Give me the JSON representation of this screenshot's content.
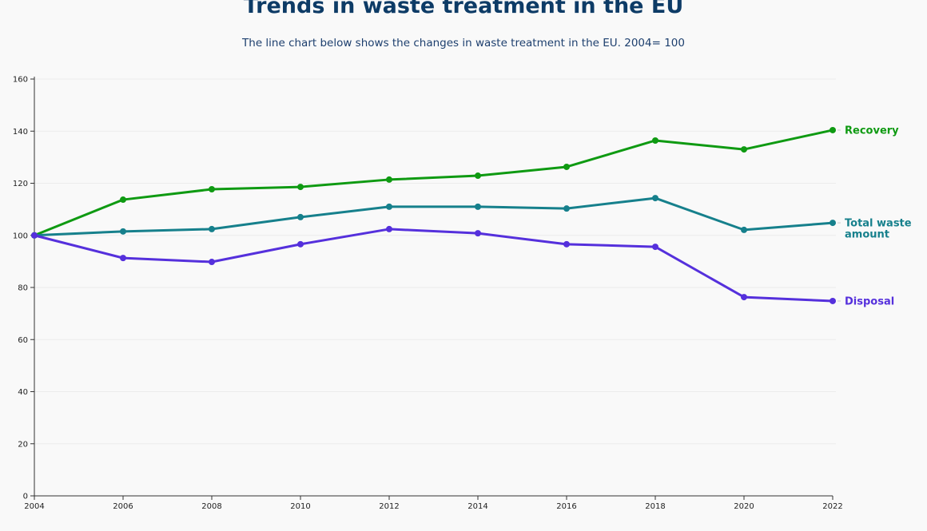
{
  "chart_data": {
    "type": "line",
    "title": "Trends in waste treatment in the EU",
    "subtitle": "The line chart below shows the changes in waste treatment in the EU. 2004= 100",
    "xlabel": "",
    "ylabel": "",
    "x": [
      2004,
      2006,
      2008,
      2010,
      2012,
      2014,
      2016,
      2018,
      2020,
      2022
    ],
    "xlim": [
      2004,
      2022
    ],
    "ylim": [
      0,
      160
    ],
    "yticks": [
      0,
      20,
      40,
      60,
      80,
      100,
      120,
      140,
      160
    ],
    "grid": true,
    "legend": "direct labels at line ends (right)",
    "series": [
      {
        "name": "Recovery",
        "color": "#0f9a12",
        "values": [
          100,
          113.7,
          117.7,
          118.6,
          121.4,
          122.9,
          126.3,
          136.4,
          133.0,
          140.4
        ]
      },
      {
        "name": "Total waste amount",
        "label_lines": [
          "Total waste",
          "amount"
        ],
        "color": "#16808c",
        "values": [
          100,
          101.5,
          102.4,
          107.0,
          111.0,
          111.0,
          110.3,
          114.3,
          102.1,
          104.8
        ]
      },
      {
        "name": "Disposal",
        "color": "#5530dc",
        "values": [
          100,
          91.3,
          89.8,
          96.6,
          102.4,
          100.8,
          96.6,
          95.6,
          76.3,
          74.8
        ]
      }
    ]
  }
}
